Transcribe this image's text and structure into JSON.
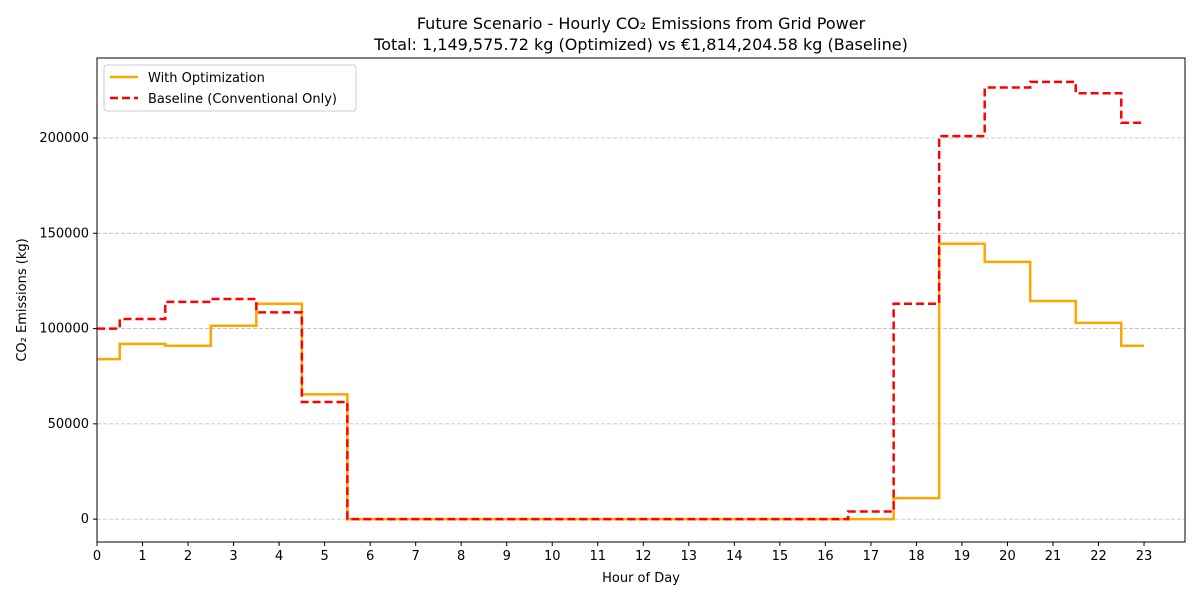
{
  "chart_data": {
    "type": "line",
    "title": "Future Scenario - Hourly CO₂ Emissions from Grid Power",
    "subtitle": "Total: 1,149,575.72 kg (Optimized) vs €1,814,204.58 kg (Baseline)",
    "xlabel": "Hour of Day",
    "ylabel": "CO₂ Emissions (kg)",
    "x": [
      0,
      1,
      2,
      3,
      4,
      5,
      6,
      7,
      8,
      9,
      10,
      11,
      12,
      13,
      14,
      15,
      16,
      17,
      18,
      19,
      20,
      21,
      22,
      23
    ],
    "xlim": [
      0,
      23.9
    ],
    "ylim": [
      -12000,
      242000
    ],
    "y_ticks": [
      0,
      50000,
      100000,
      150000,
      200000
    ],
    "grid": "horizontal dashed",
    "legend_position": "top-left",
    "series": [
      {
        "name": "With Optimization",
        "color": "#FFA500",
        "style": "solid",
        "values": [
          84000,
          92000,
          91000,
          101500,
          113000,
          65500,
          0,
          0,
          0,
          0,
          0,
          0,
          0,
          0,
          0,
          0,
          0,
          0,
          11000,
          144500,
          135000,
          114500,
          103000,
          91000
        ]
      },
      {
        "name": "Baseline (Conventional Only)",
        "color": "#FF0000",
        "style": "dashed",
        "values": [
          100000,
          105000,
          114000,
          115500,
          108500,
          61500,
          0,
          0,
          0,
          0,
          0,
          0,
          0,
          0,
          0,
          0,
          0,
          4000,
          113000,
          201000,
          226500,
          229500,
          223500,
          208000
        ]
      }
    ]
  }
}
